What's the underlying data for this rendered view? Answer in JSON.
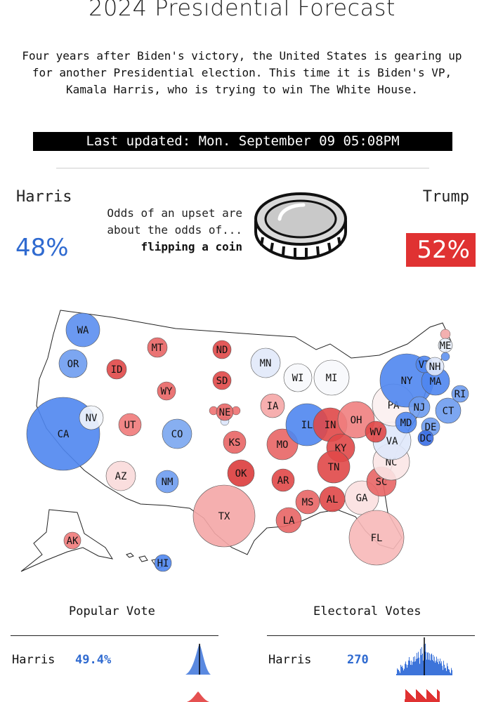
{
  "header": {
    "title": "2024 Presidential Forecast",
    "intro": "Four years after Biden's victory, the United States is gearing up for another Presidential election. This time it is Biden's VP, Kamala Harris, who is trying to win The White House.",
    "last_updated": "Last updated: Mon. September 09 05:08PM"
  },
  "odds": {
    "harris": {
      "name": "Harris",
      "pct": "48%",
      "color": "#2f6ad0"
    },
    "trump": {
      "name": "Trump",
      "pct": "52%",
      "color": "#e03232"
    },
    "upset_line1": "Odds of an upset are",
    "upset_line2": "about the odds of...",
    "upset_bold": "flipping a coin",
    "icon": "coin-icon"
  },
  "map": {
    "states": [
      {
        "abbr": "WA"
      },
      {
        "abbr": "OR"
      },
      {
        "abbr": "CA"
      },
      {
        "abbr": "NV"
      },
      {
        "abbr": "ID"
      },
      {
        "abbr": "MT"
      },
      {
        "abbr": "WY"
      },
      {
        "abbr": "UT"
      },
      {
        "abbr": "AZ"
      },
      {
        "abbr": "CO"
      },
      {
        "abbr": "NM"
      },
      {
        "abbr": "ND"
      },
      {
        "abbr": "SD"
      },
      {
        "abbr": "NE"
      },
      {
        "abbr": "KS"
      },
      {
        "abbr": "OK"
      },
      {
        "abbr": "TX"
      },
      {
        "abbr": "MN"
      },
      {
        "abbr": "IA"
      },
      {
        "abbr": "MO"
      },
      {
        "abbr": "AR"
      },
      {
        "abbr": "LA"
      },
      {
        "abbr": "WI"
      },
      {
        "abbr": "MI"
      },
      {
        "abbr": "IL"
      },
      {
        "abbr": "IN"
      },
      {
        "abbr": "OH"
      },
      {
        "abbr": "KY"
      },
      {
        "abbr": "TN"
      },
      {
        "abbr": "MS"
      },
      {
        "abbr": "AL"
      },
      {
        "abbr": "GA"
      },
      {
        "abbr": "FL"
      },
      {
        "abbr": "SC"
      },
      {
        "abbr": "NC"
      },
      {
        "abbr": "VA"
      },
      {
        "abbr": "WV"
      },
      {
        "abbr": "PA"
      },
      {
        "abbr": "NY"
      },
      {
        "abbr": "NJ"
      },
      {
        "abbr": "MD"
      },
      {
        "abbr": "DE"
      },
      {
        "abbr": "DC"
      },
      {
        "abbr": "CT"
      },
      {
        "abbr": "RI"
      },
      {
        "abbr": "MA"
      },
      {
        "abbr": "VT"
      },
      {
        "abbr": "NH"
      },
      {
        "abbr": "ME"
      },
      {
        "abbr": "AK"
      },
      {
        "abbr": "HI"
      }
    ]
  },
  "popular_vote": {
    "title": "Popular Vote",
    "harris_label": "Harris",
    "harris_value": "49.4%"
  },
  "electoral_votes": {
    "title": "Electoral Votes",
    "harris_label": "Harris",
    "harris_value": "270"
  }
}
